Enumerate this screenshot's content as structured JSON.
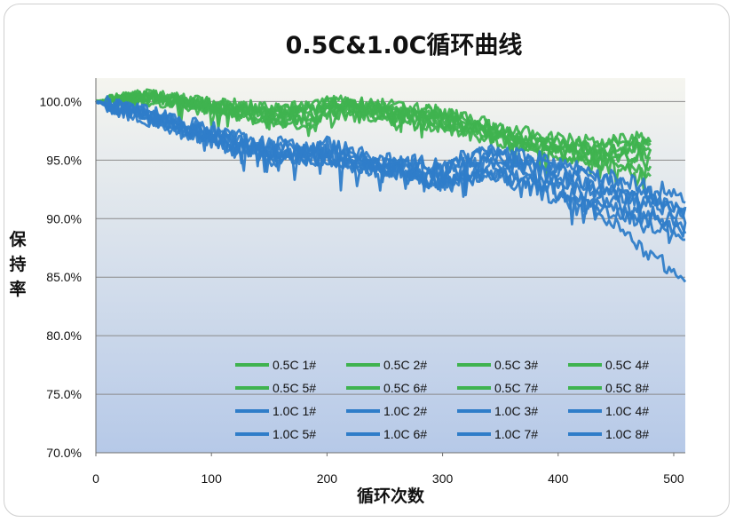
{
  "chart_data": {
    "type": "line",
    "title": "0.5C&1.0C循环曲线",
    "xlabel": "循环次数",
    "ylabel": "保持率",
    "xlim": [
      0,
      510
    ],
    "ylim": [
      70,
      102
    ],
    "x_ticks": [
      0,
      100,
      200,
      300,
      400,
      500
    ],
    "y_ticks": [
      70,
      75,
      80,
      85,
      90,
      95,
      100
    ],
    "y_tick_labels": [
      "70.0%",
      "75.0%",
      "80.0%",
      "85.0%",
      "90.0%",
      "95.0%",
      "100.0%"
    ],
    "grid": "horizontal",
    "legend": "bottom-right",
    "colors": {
      "c05": "#3fb34f",
      "c10": "#2f7dc9",
      "plot_top": "#f5f5ef",
      "plot_bottom": "#b6c9e8"
    },
    "series": [
      {
        "name": "0.5C 1#",
        "group": "0.5C",
        "x": [
          0,
          50,
          100,
          150,
          190,
          200,
          250,
          300,
          350,
          400,
          440,
          480
        ],
        "y": [
          100,
          100.6,
          99.6,
          99.1,
          99.0,
          99.6,
          99.2,
          98.6,
          97.2,
          96.0,
          95.4,
          95.3
        ]
      },
      {
        "name": "0.5C 2#",
        "group": "0.5C",
        "x": [
          0,
          50,
          100,
          150,
          190,
          200,
          250,
          300,
          350,
          400,
          440,
          480
        ],
        "y": [
          100,
          100.2,
          99.2,
          98.3,
          98.0,
          99.2,
          99.0,
          98.0,
          96.8,
          95.6,
          94.8,
          93.6
        ]
      },
      {
        "name": "0.5C 3#",
        "group": "0.5C",
        "x": [
          0,
          50,
          100,
          150,
          190,
          200,
          250,
          300,
          350,
          400,
          440,
          480
        ],
        "y": [
          100,
          100.5,
          99.8,
          99.3,
          99.5,
          100.0,
          99.6,
          99.0,
          97.6,
          96.5,
          96.2,
          96.8
        ]
      },
      {
        "name": "0.5C 4#",
        "group": "0.5C",
        "x": [
          0,
          50,
          100,
          150,
          190,
          200,
          250,
          300,
          350,
          400,
          440,
          480
        ],
        "y": [
          100,
          100.7,
          99.5,
          98.9,
          98.8,
          99.8,
          99.4,
          98.8,
          97.0,
          96.2,
          95.6,
          96.4
        ]
      },
      {
        "name": "0.5C 5#",
        "group": "0.5C",
        "x": [
          0,
          50,
          100,
          150,
          190,
          200,
          250,
          300,
          350,
          400,
          440,
          480
        ],
        "y": [
          100,
          100.3,
          99.4,
          98.6,
          98.5,
          99.0,
          98.6,
          97.8,
          96.6,
          95.4,
          94.6,
          94.0
        ]
      },
      {
        "name": "0.5C 6#",
        "group": "0.5C",
        "x": [
          0,
          50,
          100,
          150,
          190,
          200,
          250,
          300,
          350,
          400,
          440,
          480
        ],
        "y": [
          100,
          100.4,
          99.7,
          99.2,
          99.1,
          99.9,
          99.3,
          98.5,
          97.4,
          96.2,
          95.9,
          96.0
        ]
      },
      {
        "name": "0.5C 7#",
        "group": "0.5C",
        "x": [
          0,
          50,
          100,
          150,
          190,
          200,
          250,
          300,
          350,
          400,
          440,
          480
        ],
        "y": [
          100,
          100.5,
          99.9,
          99.4,
          99.6,
          100.1,
          99.7,
          99.1,
          97.8,
          96.8,
          96.5,
          97.0
        ]
      },
      {
        "name": "0.5C 8#",
        "group": "0.5C",
        "x": [
          0,
          50,
          100,
          150,
          190,
          200,
          250,
          300,
          350,
          400,
          440,
          480
        ],
        "y": [
          100,
          100.1,
          99.3,
          98.4,
          98.3,
          99.3,
          99.1,
          98.2,
          96.9,
          95.8,
          95.1,
          95.6
        ]
      },
      {
        "name": "1.0C 1#",
        "group": "1.0C",
        "x": [
          0,
          50,
          100,
          150,
          200,
          250,
          300,
          340,
          400,
          450,
          510
        ],
        "y": [
          100,
          98.8,
          97.2,
          95.8,
          95.8,
          94.6,
          94.0,
          95.4,
          94.0,
          92.4,
          90.2
        ]
      },
      {
        "name": "1.0C 2#",
        "group": "1.0C",
        "x": [
          0,
          50,
          100,
          150,
          200,
          250,
          300,
          340,
          400,
          450,
          510
        ],
        "y": [
          100,
          98.6,
          96.8,
          95.4,
          95.2,
          94.2,
          93.4,
          94.2,
          92.6,
          89.4,
          84.6
        ]
      },
      {
        "name": "1.0C 3#",
        "group": "1.0C",
        "x": [
          0,
          50,
          100,
          150,
          200,
          250,
          300,
          340,
          400,
          450,
          510
        ],
        "y": [
          100,
          99.0,
          97.6,
          96.4,
          96.4,
          95.0,
          94.6,
          95.8,
          94.8,
          93.4,
          92.0
        ]
      },
      {
        "name": "1.0C 4#",
        "group": "1.0C",
        "x": [
          0,
          50,
          100,
          150,
          200,
          250,
          300,
          340,
          400,
          450,
          510
        ],
        "y": [
          100,
          98.4,
          96.6,
          95.2,
          95.0,
          94.0,
          92.8,
          93.8,
          91.8,
          90.6,
          88.6
        ]
      },
      {
        "name": "1.0C 5#",
        "group": "1.0C",
        "x": [
          0,
          50,
          100,
          150,
          200,
          250,
          300,
          340,
          400,
          450,
          510
        ],
        "y": [
          100,
          98.9,
          97.4,
          96.0,
          96.2,
          94.8,
          94.4,
          95.6,
          94.4,
          93.0,
          91.0
        ]
      },
      {
        "name": "1.0C 6#",
        "group": "1.0C",
        "x": [
          0,
          50,
          100,
          150,
          200,
          250,
          300,
          340,
          400,
          450,
          510
        ],
        "y": [
          100,
          98.5,
          96.9,
          95.6,
          95.4,
          94.4,
          93.0,
          94.6,
          93.2,
          91.4,
          89.4
        ]
      },
      {
        "name": "1.0C 7#",
        "group": "1.0C",
        "x": [
          0,
          50,
          100,
          150,
          200,
          250,
          300,
          340,
          400,
          450,
          510
        ],
        "y": [
          100,
          98.7,
          97.0,
          95.7,
          95.6,
          94.5,
          93.8,
          95.0,
          93.6,
          92.2,
          90.6
        ]
      },
      {
        "name": "1.0C 8#",
        "group": "1.0C",
        "x": [
          0,
          50,
          100,
          150,
          200,
          250,
          300,
          340,
          400,
          450,
          510
        ],
        "y": [
          100,
          98.6,
          96.7,
          95.5,
          95.1,
          94.1,
          93.2,
          94.0,
          92.2,
          90.8,
          89.0
        ]
      }
    ]
  }
}
